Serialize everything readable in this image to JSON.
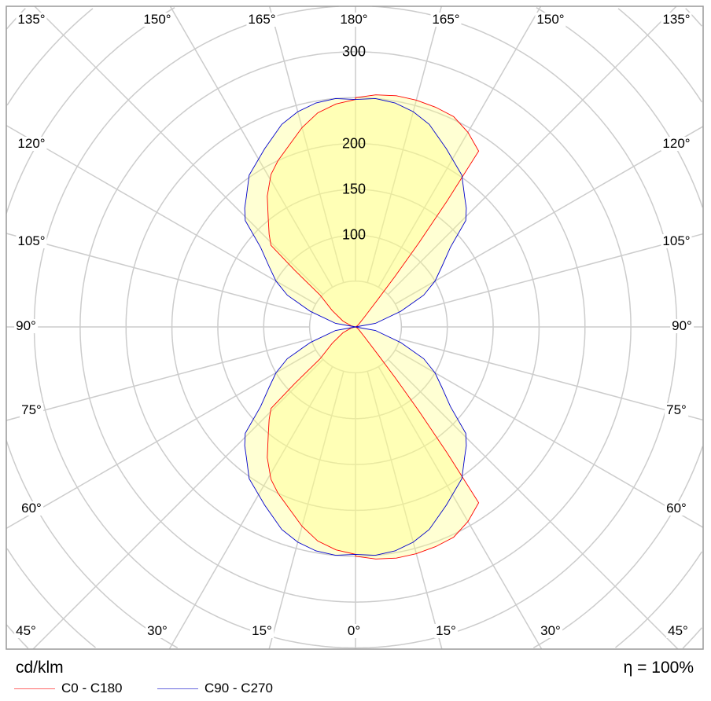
{
  "chart_data": {
    "type": "polar",
    "unit_label": "cd/klm",
    "efficiency_label": "η = 100%",
    "radial_ticks": [
      50,
      100,
      150,
      200,
      250,
      300,
      350,
      400,
      450,
      500,
      550
    ],
    "radial_labels": [
      "100",
      "150",
      "200",
      "300"
    ],
    "radial_label_values": [
      100,
      150,
      200,
      300
    ],
    "angle_labels": {
      "top": [
        "135°",
        "150°",
        "165°",
        "180°",
        "165°",
        "150°",
        "135°"
      ],
      "left": [
        "120°",
        "105°",
        "90°",
        "75°",
        "60°"
      ],
      "right": [
        "120°",
        "105°",
        "90°",
        "75°",
        "60°"
      ],
      "bottom": [
        "45°",
        "30°",
        "15°",
        "0°",
        "15°",
        "30°",
        "45°"
      ]
    },
    "series": [
      {
        "name": "C0 - C180",
        "color": "#ff0000",
        "right": [
          [
            0,
            250
          ],
          [
            5,
            254
          ],
          [
            10,
            256
          ],
          [
            15,
            256
          ],
          [
            20,
            255
          ],
          [
            25,
            253
          ],
          [
            30,
            245
          ],
          [
            35,
            234
          ],
          [
            36,
            170
          ],
          [
            37,
            115
          ],
          [
            38,
            70
          ],
          [
            39,
            40
          ],
          [
            42,
            15
          ],
          [
            50,
            5
          ],
          [
            60,
            2
          ],
          [
            90,
            0
          ],
          [
            120,
            2
          ],
          [
            130,
            5
          ],
          [
            138,
            15
          ],
          [
            141,
            40
          ],
          [
            142,
            70
          ],
          [
            143,
            115
          ],
          [
            144,
            170
          ],
          [
            145,
            234
          ],
          [
            150,
            245
          ],
          [
            155,
            253
          ],
          [
            160,
            255
          ],
          [
            165,
            256
          ],
          [
            170,
            256
          ],
          [
            175,
            254
          ],
          [
            180,
            250
          ]
        ],
        "left": [
          [
            0,
            248
          ],
          [
            5,
            244
          ],
          [
            10,
            237
          ],
          [
            15,
            225
          ],
          [
            20,
            211
          ],
          [
            25,
            200
          ],
          [
            29,
            190
          ],
          [
            34,
            172
          ],
          [
            39,
            151
          ],
          [
            43,
            138
          ],
          [
            46,
            128
          ],
          [
            47,
            90
          ],
          [
            48,
            52
          ],
          [
            55,
            31
          ],
          [
            65,
            15
          ],
          [
            75,
            5
          ],
          [
            90,
            0
          ],
          [
            105,
            5
          ],
          [
            115,
            15
          ],
          [
            125,
            31
          ],
          [
            132,
            52
          ],
          [
            133,
            90
          ],
          [
            134,
            128
          ],
          [
            137,
            138
          ],
          [
            141,
            151
          ],
          [
            146,
            172
          ],
          [
            151,
            190
          ],
          [
            155,
            200
          ],
          [
            160,
            211
          ],
          [
            165,
            225
          ],
          [
            170,
            237
          ],
          [
            175,
            244
          ],
          [
            180,
            248
          ]
        ]
      },
      {
        "name": "C90 - C270",
        "color": "#0000cc",
        "right": [
          [
            0,
            248
          ],
          [
            5,
            250
          ],
          [
            10,
            248
          ],
          [
            15,
            243
          ],
          [
            20,
            235
          ],
          [
            27,
            218
          ],
          [
            35,
            202
          ],
          [
            40,
            185
          ],
          [
            43,
            177
          ],
          [
            46,
            167
          ],
          [
            50,
            135
          ],
          [
            55,
            115
          ],
          [
            60,
            100
          ],
          [
            65,
            82
          ],
          [
            71,
            52
          ],
          [
            80,
            22
          ],
          [
            90,
            0
          ],
          [
            100,
            22
          ],
          [
            109,
            52
          ],
          [
            115,
            82
          ],
          [
            120,
            100
          ],
          [
            125,
            115
          ],
          [
            130,
            135
          ],
          [
            134,
            167
          ],
          [
            137,
            177
          ],
          [
            140,
            185
          ],
          [
            145,
            202
          ],
          [
            153,
            218
          ],
          [
            160,
            235
          ],
          [
            165,
            243
          ],
          [
            170,
            248
          ],
          [
            175,
            250
          ],
          [
            180,
            248
          ]
        ],
        "left": [
          [
            0,
            248
          ],
          [
            5,
            250
          ],
          [
            10,
            248
          ],
          [
            15,
            243
          ],
          [
            20,
            235
          ],
          [
            27,
            218
          ],
          [
            35,
            202
          ],
          [
            40,
            185
          ],
          [
            43,
            177
          ],
          [
            46,
            167
          ],
          [
            50,
            135
          ],
          [
            55,
            115
          ],
          [
            60,
            100
          ],
          [
            65,
            82
          ],
          [
            71,
            52
          ],
          [
            80,
            22
          ],
          [
            90,
            0
          ],
          [
            100,
            22
          ],
          [
            109,
            52
          ],
          [
            115,
            82
          ],
          [
            120,
            100
          ],
          [
            125,
            115
          ],
          [
            130,
            135
          ],
          [
            134,
            167
          ],
          [
            137,
            177
          ],
          [
            140,
            185
          ],
          [
            145,
            202
          ],
          [
            153,
            218
          ],
          [
            160,
            235
          ],
          [
            165,
            243
          ],
          [
            170,
            248
          ],
          [
            175,
            250
          ],
          [
            180,
            248
          ]
        ]
      }
    ]
  }
}
